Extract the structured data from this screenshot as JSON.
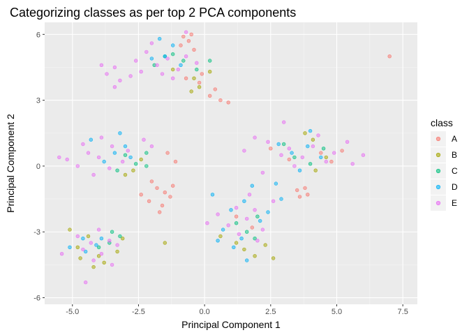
{
  "chart_data": {
    "type": "scatter",
    "title": "Categorizing classes as per top 2 PCA components",
    "xlabel": "Principal Component 1",
    "ylabel": "Principal Component 2",
    "xlim": [
      -6.05,
      8.05
    ],
    "ylim": [
      -6.3,
      6.55
    ],
    "x_ticks": [
      -5.0,
      -2.5,
      0.0,
      2.5,
      5.0,
      7.5
    ],
    "x_tick_labels": [
      "-5.0",
      "-2.5",
      "0.0",
      "2.5",
      "5.0",
      "7.5"
    ],
    "y_ticks": [
      -6,
      -3,
      0,
      3,
      6
    ],
    "y_tick_labels": [
      "-6",
      "-3",
      "0",
      "3",
      "6"
    ],
    "grid": true,
    "legend_position": "right",
    "legend_title": "class",
    "series": [
      {
        "name": "A",
        "color": "#F8766D",
        "points": [
          [
            -0.8,
            5.9
          ],
          [
            -0.6,
            5.7
          ],
          [
            -0.9,
            5.5
          ],
          [
            -0.5,
            6.0
          ],
          [
            -0.4,
            5.3
          ],
          [
            0.2,
            3.2
          ],
          [
            0.6,
            3.0
          ],
          [
            0.9,
            2.9
          ],
          [
            0.4,
            3.5
          ],
          [
            -0.2,
            3.8
          ],
          [
            7.0,
            5.0
          ],
          [
            -1.5,
            -1.2
          ],
          [
            -1.8,
            -1.0
          ],
          [
            -2.1,
            -1.6
          ],
          [
            -1.3,
            -1.4
          ],
          [
            -1.7,
            -2.1
          ],
          [
            -2.4,
            -1.3
          ],
          [
            -1.2,
            -0.9
          ],
          [
            -2.0,
            -0.7
          ],
          [
            -1.6,
            -1.8
          ],
          [
            3.6,
            -1.4
          ],
          [
            3.9,
            -1.3
          ],
          [
            3.5,
            -1.1
          ],
          [
            3.8,
            -1.0
          ],
          [
            4.4,
            0.6
          ],
          [
            4.8,
            0.2
          ],
          [
            3.2,
            0.3
          ],
          [
            2.5,
            0.8
          ],
          [
            -1.1,
            0.2
          ],
          [
            -1.4,
            0.6
          ],
          [
            -0.1,
            4.2
          ],
          [
            -0.7,
            4.0
          ],
          [
            1.2,
            -2.3
          ],
          [
            1.8,
            -2.8
          ],
          [
            5.2,
            0.7
          ]
        ]
      },
      {
        "name": "B",
        "color": "#A3A500",
        "points": [
          [
            -0.4,
            4.0
          ],
          [
            -0.2,
            3.6
          ],
          [
            -0.5,
            3.4
          ],
          [
            0.2,
            4.3
          ],
          [
            -1.2,
            4.4
          ],
          [
            -4.2,
            -4.6
          ],
          [
            -3.8,
            -4.4
          ],
          [
            -4.0,
            -4.1
          ],
          [
            -3.3,
            -3.9
          ],
          [
            -4.7,
            -4.2
          ],
          [
            -3.1,
            -3.3
          ],
          [
            1.5,
            -3.8
          ],
          [
            1.9,
            -4.1
          ],
          [
            1.2,
            -3.5
          ],
          [
            2.3,
            -3.6
          ],
          [
            0.6,
            -3.2
          ],
          [
            4.2,
            -0.2
          ],
          [
            4.6,
            0.4
          ],
          [
            -2.7,
            -0.2
          ],
          [
            -2.4,
            0.3
          ],
          [
            -3.0,
            -0.4
          ],
          [
            -4.4,
            -3.2
          ],
          [
            3.8,
            1.5
          ],
          [
            4.1,
            1.2
          ],
          [
            2.6,
            -4.2
          ],
          [
            -5.1,
            -2.9
          ],
          [
            -4.8,
            -3.7
          ],
          [
            -1.5,
            -3.5
          ]
        ]
      },
      {
        "name": "C",
        "color": "#00BF7D",
        "points": [
          [
            -1.2,
            5.1
          ],
          [
            -0.8,
            4.8
          ],
          [
            -1.5,
            5.0
          ],
          [
            0.2,
            4.8
          ],
          [
            -3.0,
            0.5
          ],
          [
            -2.6,
            0.1
          ],
          [
            -2.2,
            0.0
          ],
          [
            -3.3,
            -0.2
          ],
          [
            -3.6,
            -3.5
          ],
          [
            -3.2,
            -3.2
          ],
          [
            -4.0,
            -3.7
          ],
          [
            1.2,
            -2.6
          ],
          [
            2.0,
            -2.3
          ],
          [
            1.6,
            -3.0
          ],
          [
            3.4,
            0.4
          ],
          [
            4.0,
            0.1
          ],
          [
            4.5,
            0.8
          ],
          [
            3.0,
            1.0
          ],
          [
            -3.5,
            -3.0
          ],
          [
            -2.2,
            0.6
          ],
          [
            -1.9,
            4.6
          ],
          [
            -0.3,
            4.4
          ],
          [
            1.9,
            -3.3
          ]
        ]
      },
      {
        "name": "D",
        "color": "#00B0F6",
        "points": [
          [
            -1.5,
            5.0
          ],
          [
            -1.2,
            5.5
          ],
          [
            -0.9,
            4.6
          ],
          [
            -2.0,
            4.9
          ],
          [
            -1.7,
            5.8
          ],
          [
            -3.4,
            0.6
          ],
          [
            -3.0,
            0.9
          ],
          [
            -2.8,
            0.4
          ],
          [
            -3.8,
            0.2
          ],
          [
            -4.1,
            -3.6
          ],
          [
            -4.5,
            -3.9
          ],
          [
            -3.9,
            -3.3
          ],
          [
            -5.1,
            -3.7
          ],
          [
            1.0,
            -2.0
          ],
          [
            1.5,
            -1.6
          ],
          [
            2.1,
            -2.5
          ],
          [
            0.7,
            -2.9
          ],
          [
            1.4,
            -3.3
          ],
          [
            2.7,
            -0.8
          ],
          [
            2.9,
            -1.5
          ],
          [
            1.6,
            -4.3
          ],
          [
            3.3,
            0.6
          ],
          [
            3.9,
            0.9
          ],
          [
            4.4,
            0.4
          ],
          [
            3.6,
            -0.2
          ],
          [
            2.8,
            1.0
          ],
          [
            -4.3,
            1.2
          ],
          [
            -3.2,
            1.5
          ],
          [
            -4.6,
            -3.3
          ],
          [
            0.3,
            -1.3
          ],
          [
            1.8,
            -0.9
          ],
          [
            1.1,
            -3.7
          ],
          [
            0.5,
            -3.4
          ],
          [
            2.4,
            -2.1
          ],
          [
            4.0,
            1.6
          ]
        ]
      },
      {
        "name": "E",
        "color": "#E76BF3",
        "points": [
          [
            -2.6,
            4.8
          ],
          [
            -2.2,
            5.2
          ],
          [
            -1.8,
            4.6
          ],
          [
            -2.4,
            4.3
          ],
          [
            -1.4,
            4.9
          ],
          [
            -1.0,
            4.4
          ],
          [
            -2.8,
            4.1
          ],
          [
            -3.4,
            4.5
          ],
          [
            -3.2,
            3.9
          ],
          [
            -3.7,
            4.2
          ],
          [
            -2.0,
            5.6
          ],
          [
            -1.6,
            4.2
          ],
          [
            -0.7,
            5.0
          ],
          [
            -0.3,
            4.7
          ],
          [
            -1.2,
            4.0
          ],
          [
            -4.0,
            0.4
          ],
          [
            -3.5,
            0.9
          ],
          [
            -3.1,
            0.2
          ],
          [
            -4.4,
            0.6
          ],
          [
            -4.8,
            0.0
          ],
          [
            -5.2,
            0.3
          ],
          [
            -4.2,
            -0.4
          ],
          [
            -3.6,
            -0.1
          ],
          [
            -2.9,
            0.7
          ],
          [
            -2.3,
            1.2
          ],
          [
            -3.9,
            1.3
          ],
          [
            -4.6,
            1.0
          ],
          [
            -5.5,
            0.4
          ],
          [
            -4.3,
            -3.5
          ],
          [
            -3.9,
            -4.0
          ],
          [
            -4.6,
            -3.8
          ],
          [
            -3.6,
            -3.4
          ],
          [
            -4.2,
            -4.3
          ],
          [
            -3.3,
            -3.6
          ],
          [
            -4.8,
            -3.2
          ],
          [
            -4.0,
            -2.9
          ],
          [
            -3.5,
            -4.5
          ],
          [
            -5.4,
            -4.0
          ],
          [
            -4.5,
            -5.3
          ],
          [
            1.2,
            -1.9
          ],
          [
            1.6,
            -2.4
          ],
          [
            0.9,
            -2.7
          ],
          [
            1.9,
            -2.0
          ],
          [
            2.2,
            -2.9
          ],
          [
            0.5,
            -2.2
          ],
          [
            1.3,
            -3.1
          ],
          [
            2.6,
            -1.6
          ],
          [
            0.1,
            -2.6
          ],
          [
            1.7,
            -1.3
          ],
          [
            2.0,
            -3.4
          ],
          [
            3.2,
            0.8
          ],
          [
            3.7,
            0.4
          ],
          [
            4.1,
            0.9
          ],
          [
            3.4,
            0.0
          ],
          [
            4.6,
            0.2
          ],
          [
            2.9,
            0.5
          ],
          [
            2.4,
            1.1
          ],
          [
            1.9,
            1.3
          ],
          [
            4.9,
            0.6
          ],
          [
            5.6,
            0.1
          ],
          [
            5.4,
            1.1
          ],
          [
            4.3,
            1.4
          ],
          [
            1.5,
            0.7
          ],
          [
            2.2,
            -0.3
          ],
          [
            6.0,
            0.5
          ],
          [
            3.0,
            2.0
          ],
          [
            -0.7,
            6.1
          ],
          [
            -3.4,
            3.6
          ],
          [
            -3.9,
            4.6
          ],
          [
            -2.0,
            0.9
          ]
        ]
      }
    ]
  }
}
